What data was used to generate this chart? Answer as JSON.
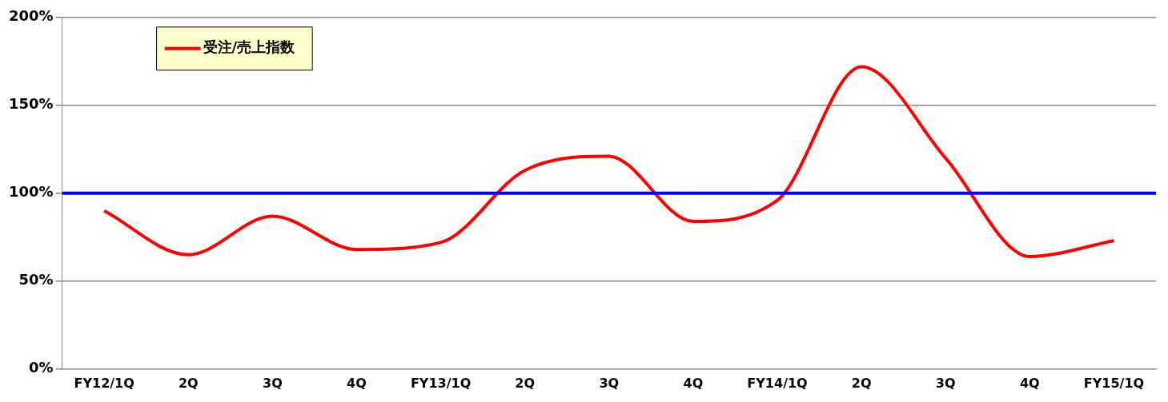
{
  "chart_data": {
    "type": "line",
    "categories": [
      "FY12/1Q",
      "2Q",
      "3Q",
      "4Q",
      "FY13/1Q",
      "2Q",
      "3Q",
      "4Q",
      "FY14/1Q",
      "2Q",
      "3Q",
      "4Q",
      "FY15/1Q"
    ],
    "series": [
      {
        "name": "受注/売上指数",
        "color": "#ff0000",
        "values": [
          90,
          65,
          87,
          68,
          72,
          113,
          121,
          84,
          96,
          172,
          120,
          64,
          73
        ]
      }
    ],
    "ylim": [
      0,
      200
    ],
    "yticks": [
      {
        "value": 0,
        "label": "0%"
      },
      {
        "value": 50,
        "label": "50%"
      },
      {
        "value": 100,
        "label": "100%"
      },
      {
        "value": 150,
        "label": "150%"
      },
      {
        "value": 200,
        "label": "200%"
      }
    ],
    "grid": "y",
    "legend": "top left",
    "marker": "none",
    "line_style": "solid",
    "ref_lines": [
      {
        "axis": "y",
        "value": 100,
        "color": "#0000ff",
        "line_style": "solid"
      }
    ]
  }
}
